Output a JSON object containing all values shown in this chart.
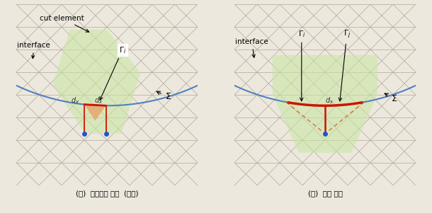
{
  "bg_color": "#ede8de",
  "grid_color": "#b0a898",
  "grid_lw": 0.5,
  "panel_bg": "#f0ece2",
  "green_fill": "#c8e6a0",
  "green_fill_alpha": 0.55,
  "orange_fill": "#e8a060",
  "orange_fill_alpha": 0.75,
  "blue_curve_color": "#5080c0",
  "red_line_color": "#cc1500",
  "blue_dot_color": "#2255cc",
  "caption_left": "(가)  절단요소 기반  (기존)",
  "caption_right": "(나)  절점 기반",
  "label_interface": "interface",
  "label_cut_element": "cut element"
}
